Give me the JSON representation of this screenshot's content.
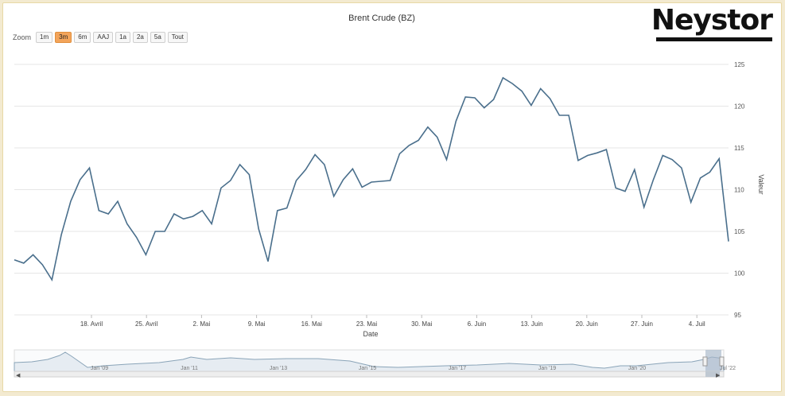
{
  "brand": {
    "logo_text": "Neystor"
  },
  "zoom": {
    "label": "Zoom",
    "buttons": [
      "1m",
      "3m",
      "6m",
      "AAJ",
      "1a",
      "2a",
      "5a",
      "Tout"
    ],
    "active": "3m"
  },
  "colors": {
    "line": "#4a6f8c",
    "grid": "#e6e6e6",
    "navigator_line": "#8aa4b8",
    "accent": "#f3a45a"
  },
  "navigator": {
    "labels": [
      "Jan '09",
      "Jan '11",
      "Jan '13",
      "Jan '15",
      "Jan '17",
      "Jan '19",
      "Jan '20",
      "Jul '22"
    ]
  },
  "chart_data": {
    "type": "line",
    "title": "Brent Crude (BZ)",
    "xlabel": "Date",
    "ylabel": "Valeur",
    "ylim": [
      95,
      127
    ],
    "yticks": [
      95,
      100,
      105,
      110,
      115,
      120,
      125
    ],
    "grid": true,
    "x_tick_labels": [
      "18. Avril",
      "25. Avril",
      "2. Mai",
      "9. Mai",
      "16. Mai",
      "23. Mai",
      "30. Mai",
      "6. Juin",
      "13. Juin",
      "20. Juin",
      "27. Juin",
      "4. Juil"
    ],
    "series": [
      {
        "values": [
          101.6,
          101.2,
          102.2,
          101.0,
          99.2,
          104.6,
          108.6,
          111.2,
          112.6,
          107.5,
          107.1,
          108.6,
          105.9,
          104.3,
          102.2,
          105.0,
          105.0,
          107.1,
          106.5,
          106.8,
          107.5,
          105.9,
          110.2,
          111.1,
          113.0,
          111.8,
          105.3,
          101.4,
          107.5,
          107.8,
          111.1,
          112.4,
          114.2,
          113.0,
          109.2,
          111.2,
          112.5,
          110.3,
          110.9,
          111.0,
          111.1,
          114.3,
          115.3,
          115.9,
          117.5,
          116.3,
          113.6,
          118.2,
          121.1,
          121.0,
          119.8,
          120.8,
          123.4,
          122.7,
          121.8,
          120.1,
          122.1,
          120.9,
          118.9,
          118.9,
          113.5,
          114.1,
          114.4,
          114.8,
          110.2,
          109.8,
          112.4,
          107.9,
          111.2,
          114.1,
          113.6,
          112.6,
          108.5,
          111.4,
          112.1,
          113.7,
          103.8
        ]
      }
    ]
  }
}
